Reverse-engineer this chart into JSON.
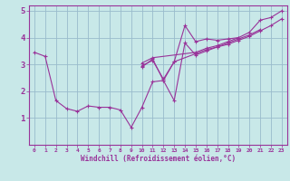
{
  "background_color": "#c8e8e8",
  "line_color": "#993399",
  "grid_color": "#99bbcc",
  "xlabel": "Windchill (Refroidissement éolien,°C)",
  "xlabel_color": "#993399",
  "xlim": [
    -0.5,
    23.5
  ],
  "ylim": [
    0,
    5.2
  ],
  "xticks": [
    0,
    1,
    2,
    3,
    4,
    5,
    6,
    7,
    8,
    9,
    10,
    11,
    12,
    13,
    14,
    15,
    16,
    17,
    18,
    19,
    20,
    21,
    22,
    23
  ],
  "yticks": [
    1,
    2,
    3,
    4,
    5
  ],
  "ytick_labels": [
    "1",
    "2",
    "3",
    "4",
    "5"
  ],
  "series": [
    [
      3.45,
      3.3,
      1.65,
      1.35,
      1.25,
      1.45,
      1.4,
      1.4,
      1.3,
      0.65,
      1.4,
      2.35,
      2.4,
      3.1,
      4.45,
      3.85,
      3.95,
      3.9,
      3.95,
      4.0,
      4.2,
      4.65,
      4.75,
      5.0
    ],
    [
      null,
      null,
      null,
      null,
      null,
      null,
      null,
      null,
      null,
      null,
      2.9,
      3.2,
      2.4,
      1.65,
      3.8,
      3.35,
      3.5,
      3.65,
      3.75,
      3.9,
      4.05,
      4.25,
      4.45,
      4.7
    ],
    [
      null,
      null,
      null,
      null,
      null,
      null,
      null,
      null,
      null,
      null,
      2.95,
      3.15,
      2.45,
      3.1,
      null,
      3.4,
      3.55,
      3.65,
      3.8,
      3.95,
      4.1,
      4.3,
      null,
      null
    ],
    [
      null,
      null,
      null,
      null,
      null,
      null,
      null,
      null,
      null,
      null,
      3.05,
      3.25,
      null,
      null,
      null,
      3.45,
      3.6,
      3.7,
      3.85,
      4.0,
      null,
      null,
      null,
      null
    ]
  ]
}
